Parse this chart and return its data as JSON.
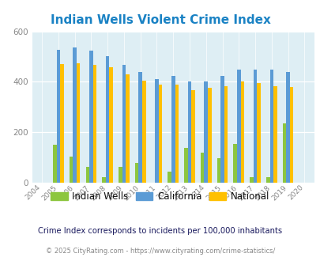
{
  "title": "Indian Wells Violent Crime Index",
  "years": [
    2004,
    2005,
    2006,
    2007,
    2008,
    2009,
    2010,
    2011,
    2012,
    2013,
    2014,
    2015,
    2016,
    2017,
    2018,
    2019,
    2020
  ],
  "indian_wells": [
    0,
    150,
    102,
    63,
    22,
    63,
    78,
    0,
    43,
    137,
    118,
    97,
    155,
    22,
    22,
    235,
    0
  ],
  "california": [
    0,
    528,
    535,
    523,
    503,
    468,
    440,
    410,
    424,
    400,
    400,
    423,
    447,
    449,
    449,
    440,
    0
  ],
  "national": [
    0,
    469,
    473,
    466,
    458,
    430,
    405,
    388,
    390,
    368,
    375,
    383,
    400,
    395,
    383,
    379,
    0
  ],
  "indian_wells_color": "#8dc63f",
  "california_color": "#5b9bd5",
  "national_color": "#ffc000",
  "background_color": "#deeef4",
  "title_color": "#1a82c4",
  "ylim": [
    0,
    600
  ],
  "yticks": [
    0,
    200,
    400,
    600
  ],
  "subtitle": "Crime Index corresponds to incidents per 100,000 inhabitants",
  "footer": "© 2025 CityRating.com - https://www.cityrating.com/crime-statistics/",
  "legend_labels": [
    "Indian Wells",
    "California",
    "National"
  ],
  "subtitle_color": "#1a1a5e",
  "footer_color": "#888888",
  "tick_color": "#888888"
}
